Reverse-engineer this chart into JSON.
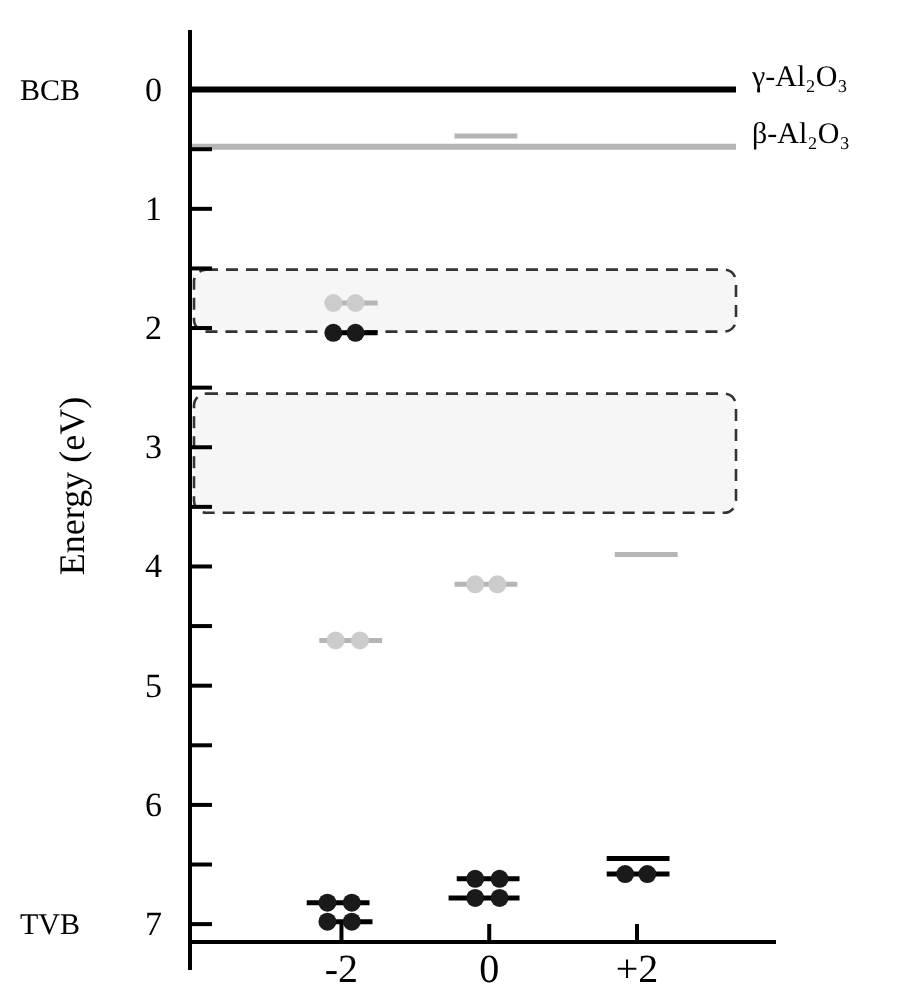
{
  "chart_data": {
    "type": "line",
    "ylabel": "Energy (eV)",
    "xlim": [
      -4.05,
      3.34
    ],
    "xticks": [
      {
        "value": -2,
        "label": "-2"
      },
      0,
      {
        "value": 2,
        "label": "+2"
      }
    ],
    "ylim": [
      7.15,
      -0.5
    ],
    "yticks": [
      0,
      {
        "value": 0.5,
        "label": null
      },
      1,
      {
        "value": 1.5,
        "label": null
      },
      2,
      {
        "value": 2.5,
        "label": null
      },
      3,
      {
        "value": 3.5,
        "label": null
      },
      4,
      {
        "value": 4.5,
        "label": null
      },
      5,
      {
        "value": 5.5,
        "label": null
      },
      6,
      {
        "value": 6.5,
        "label": null
      },
      7
    ],
    "grid": false,
    "marker": "none",
    "series": [
      {
        "color": "#b5b5b5",
        "x": [
          -0.47,
          0.38
        ],
        "values": [
          0.39,
          0.39
        ]
      },
      {
        "color": "#b5b5b5",
        "x": [
          -2.22,
          -1.51
        ],
        "values": [
          1.79,
          1.79
        ]
      },
      {
        "color": "#b5b5b5",
        "x": [
          -2.3,
          -1.45
        ],
        "values": [
          4.62,
          4.62
        ]
      },
      {
        "color": "#b5b5b5",
        "x": [
          -0.47,
          0.38
        ],
        "values": [
          4.15,
          4.15
        ]
      },
      {
        "color": "#b5b5b5",
        "x": [
          1.7,
          2.55
        ],
        "values": [
          3.9,
          3.9
        ]
      },
      {
        "color": "#000000",
        "x": [
          -2.22,
          -1.51
        ],
        "values": [
          2.04,
          2.04
        ]
      },
      {
        "color": "#000000",
        "x": [
          -2.47,
          -1.62
        ],
        "values": [
          6.82,
          6.82
        ]
      },
      {
        "color": "#000000",
        "x": [
          -2.3,
          -1.58
        ],
        "values": [
          6.98,
          6.98
        ]
      },
      {
        "color": "#000000",
        "x": [
          -0.44,
          0.41
        ],
        "values": [
          6.62,
          6.62
        ]
      },
      {
        "color": "#000000",
        "x": [
          -0.55,
          0.41
        ],
        "values": [
          6.78,
          6.78
        ]
      },
      {
        "color": "#000000",
        "x": [
          1.59,
          2.44
        ],
        "values": [
          6.45,
          6.45
        ]
      },
      {
        "color": "#000000",
        "x": [
          1.59,
          2.44
        ],
        "values": [
          6.58,
          6.58
        ]
      },
      {
        "type": "scatter",
        "marker": "circle",
        "color": "#cccccc",
        "x": [
          -2.11,
          -1.81,
          -2.08,
          -1.75,
          -0.19,
          0.11
        ],
        "values": [
          1.79,
          1.79,
          4.62,
          4.62,
          4.15,
          4.15
        ]
      },
      {
        "type": "scatter",
        "marker": "circle",
        "color": "#1a1a1a",
        "x": [
          -2.11,
          -1.81,
          -2.19,
          -1.86,
          -2.19,
          -1.86,
          -0.19,
          0.14,
          -0.19,
          0.14,
          1.84,
          2.14
        ],
        "values": [
          2.04,
          2.04,
          6.82,
          6.82,
          6.98,
          6.98,
          6.62,
          6.62,
          6.78,
          6.78,
          6.58,
          6.58
        ]
      }
    ],
    "ref_lines": [
      {
        "axis": "y",
        "value": 0,
        "label": "γ-Al₂O₃",
        "color": "#000000"
      },
      {
        "axis": "y",
        "value": 0.48,
        "label": "β-Al₂O₃",
        "color": "#b5b5b5"
      }
    ],
    "bands": [
      {
        "axis": "y",
        "from": 1.51,
        "to": 2.03,
        "color": "#f6f6f6"
      },
      {
        "axis": "y",
        "from": 2.55,
        "to": 3.55,
        "color": "#f6f6f6"
      }
    ],
    "annotations": [
      "BCB",
      "TVB"
    ]
  }
}
